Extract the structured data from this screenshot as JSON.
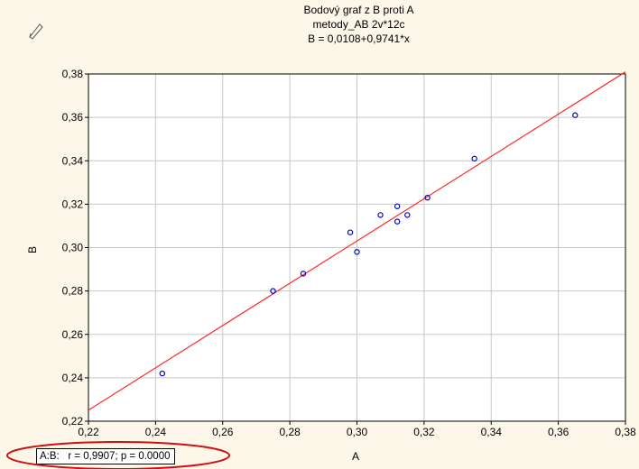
{
  "title_lines": [
    "Bodový graf z B proti A",
    "metody_AB 2v*12c",
    "B = 0,0108+0,9741*x"
  ],
  "footnote": "A:B:   r = 0,9907; p = 0.0000",
  "corner_icon": "pen-icon",
  "colors": {
    "background": "#fdf7ea",
    "plot_bg": "#ffffff",
    "grid": "#c8c8c8",
    "points": "#0000cc",
    "line": "#ff2a2a",
    "highlight": "#d01010"
  },
  "chart_data": {
    "type": "scatter",
    "xlabel": "A",
    "ylabel": "B",
    "xlim": [
      0.22,
      0.38
    ],
    "ylim": [
      0.22,
      0.38
    ],
    "xticks": [
      "0,22",
      "0,24",
      "0,26",
      "0,28",
      "0,30",
      "0,32",
      "0,34",
      "0,36",
      "0,38"
    ],
    "yticks": [
      "0,22",
      "0,24",
      "0,26",
      "0,28",
      "0,30",
      "0,32",
      "0,34",
      "0,36",
      "0,38"
    ],
    "grid": true,
    "points": [
      [
        0.242,
        0.242
      ],
      [
        0.275,
        0.28
      ],
      [
        0.284,
        0.288
      ],
      [
        0.298,
        0.307
      ],
      [
        0.3,
        0.298
      ],
      [
        0.307,
        0.315
      ],
      [
        0.312,
        0.319
      ],
      [
        0.312,
        0.312
      ],
      [
        0.315,
        0.315
      ],
      [
        0.321,
        0.323
      ],
      [
        0.335,
        0.341
      ],
      [
        0.365,
        0.361
      ]
    ],
    "fit": {
      "intercept": 0.0108,
      "slope": 0.9741
    }
  }
}
